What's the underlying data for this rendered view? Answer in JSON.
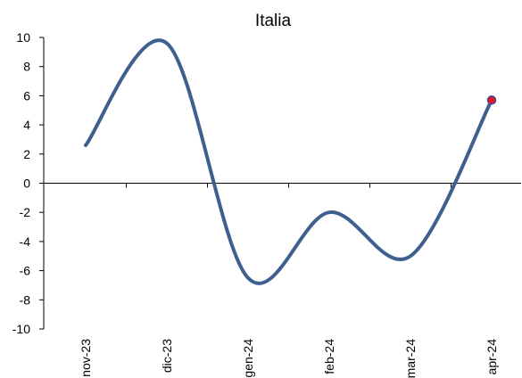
{
  "chart_data": {
    "type": "line",
    "title": "Italia",
    "xlabel": "",
    "ylabel": "",
    "x": [
      "nov-23",
      "dic-23",
      "gen-24",
      "feb-24",
      "mar-24",
      "apr-24"
    ],
    "yticks": [
      "10",
      "8",
      "6",
      "4",
      "2",
      "0",
      "-2",
      "-4",
      "-6",
      "-8",
      "-10"
    ],
    "ylim": [
      -10,
      10
    ],
    "series": [
      {
        "values": [
          2.6,
          9.6,
          -6.5,
          -2.0,
          -5.0,
          5.7
        ],
        "color": "#3f5f8f"
      }
    ],
    "end_marker": {
      "color": "#e8141b",
      "edge": "#3a4fa0"
    },
    "grid": false,
    "legend": "none"
  }
}
